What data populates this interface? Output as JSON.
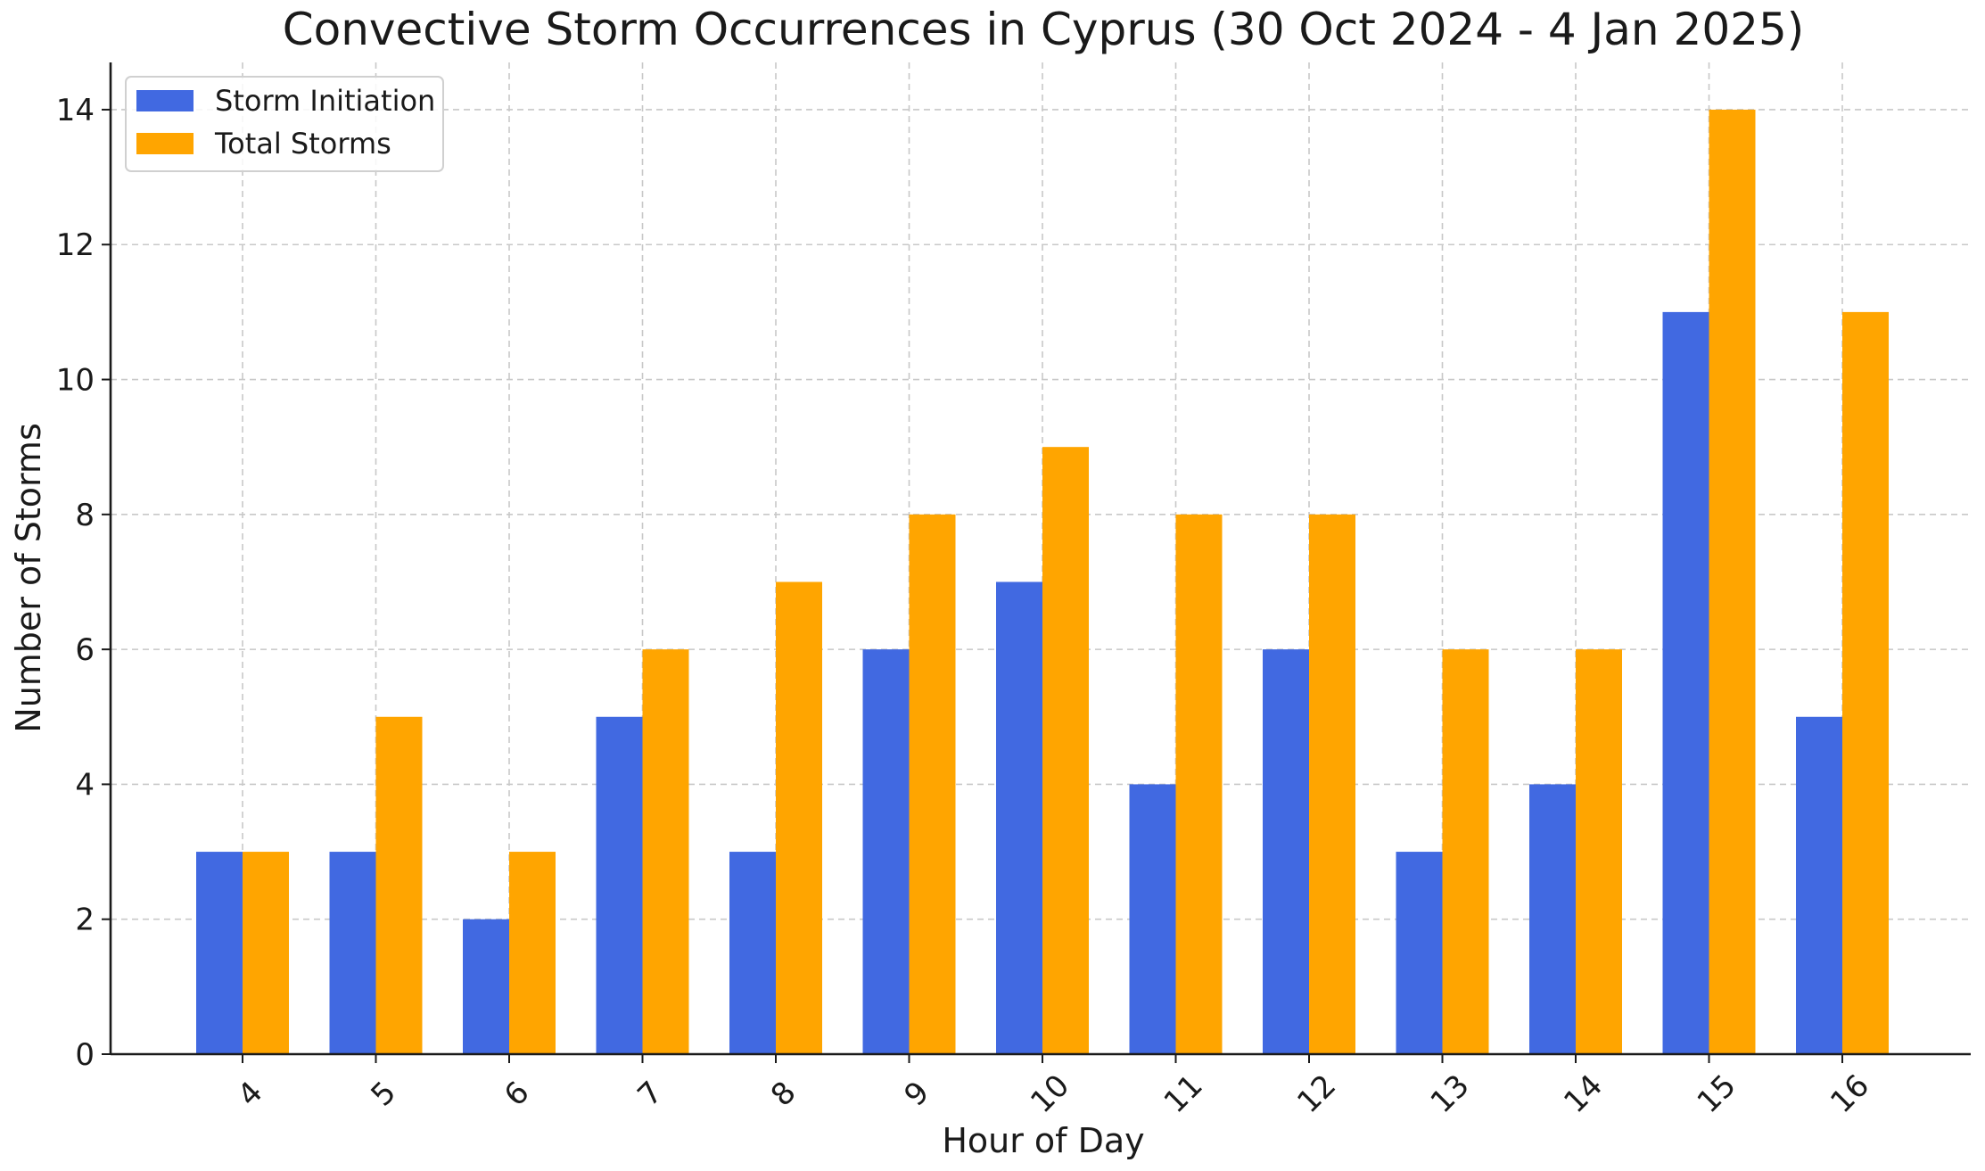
{
  "chart_data": {
    "type": "bar",
    "title": "Convective Storm Occurrences in Cyprus (30 Oct 2024 - 4 Jan 2025)",
    "xlabel": "Hour of Day",
    "ylabel": "Number of Storms",
    "categories": [
      "4",
      "5",
      "6",
      "7",
      "8",
      "9",
      "10",
      "11",
      "12",
      "13",
      "14",
      "15",
      "16"
    ],
    "series": [
      {
        "name": "Storm Initiation",
        "color": "#4169e1",
        "values": [
          3,
          3,
          2,
          5,
          3,
          6,
          7,
          4,
          6,
          3,
          4,
          11,
          5
        ]
      },
      {
        "name": "Total Storms",
        "color": "#ffa500",
        "values": [
          3,
          5,
          3,
          6,
          7,
          8,
          9,
          8,
          8,
          6,
          6,
          14,
          11
        ]
      }
    ],
    "ylim": [
      0,
      14.7
    ],
    "yticks": [
      "0",
      "2",
      "4",
      "6",
      "8",
      "10",
      "12",
      "14"
    ],
    "grid": true,
    "legend_position": "top-left",
    "tick_rotation": "45"
  }
}
